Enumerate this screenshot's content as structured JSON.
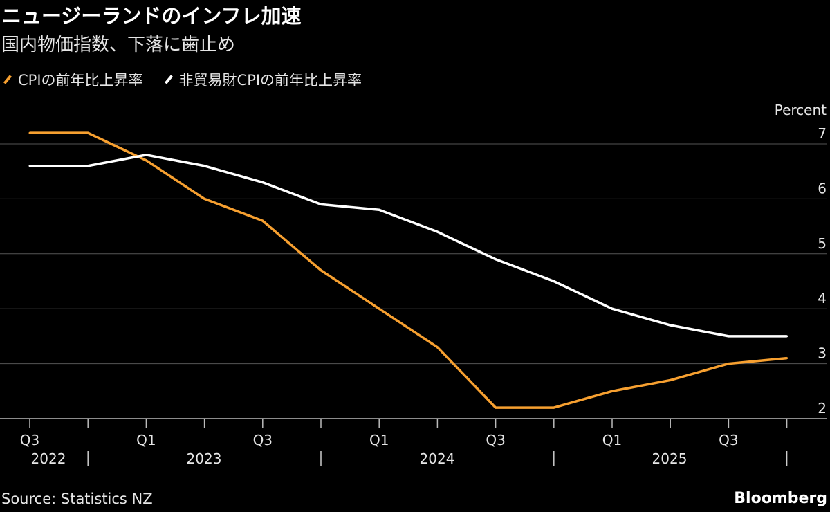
{
  "title": "ニュージーランドのインフレ加速",
  "subtitle": "国内物価指数、下落に歯止め",
  "source": "Source: Statistics NZ",
  "brand": "Bloomberg",
  "chart_data": {
    "type": "line",
    "title": "ニュージーランドのインフレ加速",
    "subtitle": "国内物価指数、下落に歯止め",
    "ylabel": "Percent",
    "ylim": [
      2,
      7
    ],
    "yticks": [
      2,
      3,
      4,
      5,
      6,
      7
    ],
    "grid": true,
    "legend": "top-left",
    "x": [
      "2022 Q3",
      "2022 Q4",
      "2023 Q1",
      "2023 Q2",
      "2023 Q3",
      "2023 Q4",
      "2024 Q1",
      "2024 Q2",
      "2024 Q3",
      "2024 Q4",
      "2025 Q1",
      "2025 Q2",
      "2025 Q3",
      "2025 Q4"
    ],
    "xtick_labels": [
      "Q3",
      "Q1",
      "Q3",
      "Q1",
      "Q3",
      "Q1",
      "Q3"
    ],
    "year_labels": [
      "2022",
      "2023",
      "2024",
      "2025"
    ],
    "series": [
      {
        "name": "CPIの前年比上昇率",
        "color": "#f7a030",
        "values": [
          7.2,
          7.2,
          6.7,
          6.0,
          5.6,
          4.7,
          4.0,
          3.3,
          2.2,
          2.2,
          2.5,
          2.7,
          3.0,
          3.1
        ]
      },
      {
        "name": "非貿易財CPIの前年比上昇率",
        "color": "#ffffff",
        "values": [
          6.6,
          6.6,
          6.8,
          6.6,
          6.3,
          5.9,
          5.8,
          5.4,
          4.9,
          4.5,
          4.0,
          3.7,
          3.5,
          3.5
        ]
      }
    ]
  }
}
